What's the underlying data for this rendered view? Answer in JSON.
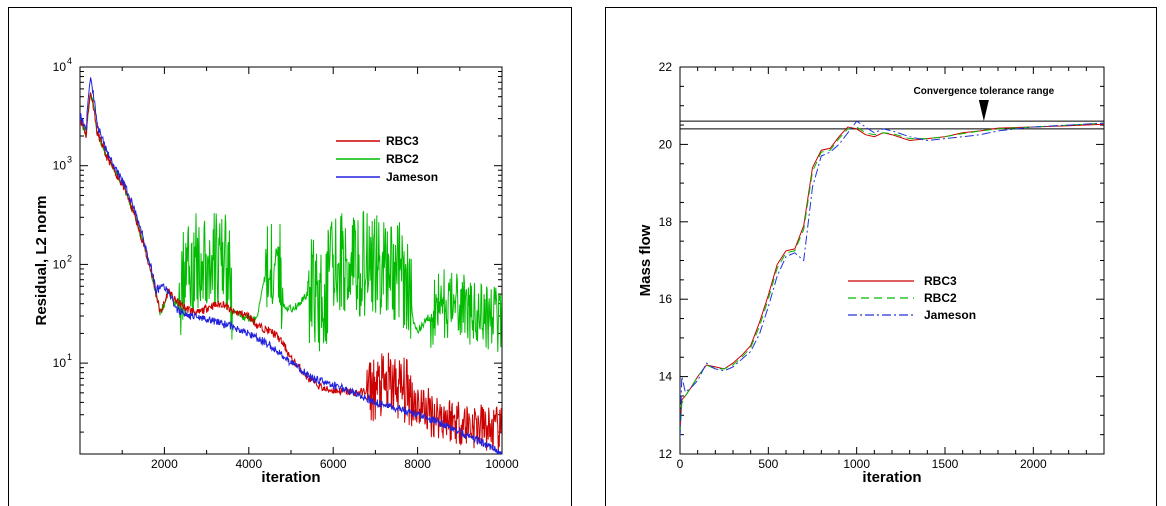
{
  "chart_data": [
    {
      "type": "line",
      "xlabel": "iteration",
      "ylabel": "Residual, L2 norm",
      "xlim": [
        0,
        10000
      ],
      "ylim": [
        1.2,
        10000
      ],
      "yscale": "log",
      "x_ticks": [
        "2000",
        "4000",
        "6000",
        "8000",
        "10000"
      ],
      "y_ticks": [
        {
          "base": "10",
          "exp": "1"
        },
        {
          "base": "10",
          "exp": "2"
        },
        {
          "base": "10",
          "exp": "3"
        },
        {
          "base": "10",
          "exp": "4"
        }
      ],
      "grid": false,
      "legend_position": "right-middle",
      "series": [
        {
          "name": "RBC3",
          "color": "#cc0000",
          "x": [
            0,
            150,
            250,
            400,
            600,
            800,
            1000,
            1200,
            1400,
            1600,
            1800,
            1900,
            2000,
            2100,
            2200,
            2500,
            2800,
            3100,
            3400,
            3600,
            3800,
            4000,
            4200,
            4400,
            4600,
            4800,
            5000,
            5400,
            5800,
            6200,
            6600,
            7000,
            7400,
            7800,
            8000,
            8400,
            8800,
            9200,
            9600,
            10000
          ],
          "y": [
            3000,
            2000,
            5500,
            2200,
            1300,
            900,
            650,
            400,
            220,
            110,
            50,
            32,
            40,
            55,
            45,
            36,
            32,
            38,
            40,
            33,
            32,
            30,
            24,
            22,
            20,
            16,
            11,
            7,
            5.4,
            5.2,
            5.0,
            5.5,
            6.0,
            5.0,
            3.8,
            3.0,
            2.7,
            2.4,
            2.2,
            2.0
          ],
          "noise": [
            [
              6800,
              7900,
              0.35
            ],
            [
              7900,
              10000,
              0.25
            ]
          ]
        },
        {
          "name": "RBC2",
          "color": "#00bb00",
          "x": [
            0,
            150,
            250,
            400,
            600,
            800,
            1000,
            1200,
            1400,
            1600,
            1800,
            1900,
            2000,
            2100,
            2200,
            2350,
            2500,
            3000,
            3500,
            3600,
            3800,
            4000,
            4200,
            4500,
            4700,
            4800,
            5000,
            5200,
            5500,
            5800,
            6000,
            6500,
            7000,
            7500,
            7800,
            7900,
            8000,
            8300,
            8600,
            9000,
            9500,
            10000
          ],
          "y": [
            3000,
            2000,
            5500,
            2200,
            1300,
            900,
            650,
            400,
            220,
            110,
            50,
            32,
            40,
            55,
            45,
            36,
            100,
            110,
            100,
            35,
            30,
            28,
            28,
            100,
            110,
            40,
            35,
            40,
            55,
            40,
            100,
            105,
            100,
            95,
            60,
            25,
            21,
            30,
            40,
            38,
            30,
            28
          ],
          "noise": [
            [
              2350,
              3600,
              0.5
            ],
            [
              4400,
              4800,
              0.5
            ],
            [
              5400,
              7850,
              0.55
            ],
            [
              8300,
              10000,
              0.35
            ]
          ]
        },
        {
          "name": "Jameson",
          "color": "#2222dd",
          "x": [
            0,
            150,
            250,
            400,
            600,
            800,
            1000,
            1200,
            1400,
            1600,
            1800,
            2000,
            2100,
            2300,
            2600,
            3000,
            3400,
            4000,
            4500,
            5000,
            5500,
            6000,
            7000,
            8000,
            9000,
            10000
          ],
          "y": [
            3200,
            2300,
            7500,
            2600,
            1500,
            1000,
            700,
            450,
            250,
            120,
            55,
            60,
            50,
            35,
            30,
            28,
            25,
            20,
            15,
            10,
            7,
            6,
            4,
            3,
            2,
            1.2
          ],
          "noise": []
        }
      ]
    },
    {
      "type": "line",
      "xlabel": "iteration",
      "ylabel": "Mass flow",
      "xlim": [
        0,
        2400
      ],
      "ylim": [
        12,
        22
      ],
      "x_ticks": [
        "0",
        "500",
        "1000",
        "1500",
        "2000"
      ],
      "y_ticks": [
        "12",
        "14",
        "16",
        "18",
        "20",
        "22"
      ],
      "grid": false,
      "legend_position": "center",
      "annotation": {
        "text": "Convergence tolerance range",
        "x": 1720,
        "y": 20.6
      },
      "reference_lines": [
        20.6,
        20.4
      ],
      "series": [
        {
          "name": "RBC3",
          "color": "#cc0000",
          "dash": "",
          "x": [
            0,
            10,
            30,
            60,
            100,
            150,
            200,
            250,
            300,
            350,
            400,
            450,
            500,
            550,
            600,
            650,
            700,
            750,
            800,
            850,
            900,
            950,
            1000,
            1050,
            1100,
            1150,
            1200,
            1300,
            1400,
            1500,
            1600,
            1700,
            1800,
            2000,
            2200,
            2400
          ],
          "y": [
            12.6,
            13.4,
            13.5,
            13.7,
            14.0,
            14.3,
            14.25,
            14.2,
            14.35,
            14.55,
            14.8,
            15.4,
            16.1,
            16.9,
            17.25,
            17.3,
            17.9,
            19.4,
            19.85,
            19.9,
            20.2,
            20.45,
            20.4,
            20.25,
            20.2,
            20.3,
            20.25,
            20.1,
            20.15,
            20.2,
            20.3,
            20.35,
            20.42,
            20.45,
            20.48,
            20.52
          ]
        },
        {
          "name": "RBC2",
          "color": "#00bb00",
          "dash": "8 5",
          "x": [
            0,
            10,
            30,
            60,
            100,
            150,
            200,
            250,
            300,
            350,
            400,
            450,
            500,
            550,
            600,
            650,
            700,
            750,
            800,
            850,
            900,
            950,
            1000,
            1050,
            1100,
            1150,
            1200,
            1300,
            1400,
            1500,
            1600,
            1700,
            1800,
            2000,
            2200,
            2400
          ],
          "y": [
            12.5,
            13.3,
            13.5,
            13.7,
            14.0,
            14.3,
            14.2,
            14.2,
            14.3,
            14.5,
            14.75,
            15.3,
            16.0,
            16.8,
            17.2,
            17.25,
            17.8,
            19.3,
            19.8,
            19.85,
            20.15,
            20.4,
            20.45,
            20.3,
            20.25,
            20.3,
            20.28,
            20.15,
            20.15,
            20.2,
            20.28,
            20.35,
            20.4,
            20.45,
            20.5,
            20.55
          ]
        },
        {
          "name": "Jameson",
          "color": "#2233dd",
          "dash": "9 3 2 3",
          "x": [
            0,
            10,
            30,
            60,
            100,
            150,
            200,
            250,
            300,
            350,
            400,
            450,
            500,
            550,
            600,
            650,
            700,
            750,
            800,
            850,
            900,
            950,
            1000,
            1050,
            1100,
            1150,
            1200,
            1300,
            1400,
            1500,
            1600,
            1700,
            1800,
            2000,
            2200,
            2400
          ],
          "y": [
            12.4,
            14.0,
            13.6,
            13.7,
            13.9,
            14.35,
            14.2,
            14.15,
            14.25,
            14.45,
            14.65,
            15.1,
            15.8,
            16.6,
            17.1,
            17.2,
            17.0,
            18.9,
            19.7,
            19.8,
            20.0,
            20.3,
            20.6,
            20.45,
            20.3,
            20.4,
            20.35,
            20.2,
            20.1,
            20.15,
            20.2,
            20.25,
            20.35,
            20.45,
            20.5,
            20.55
          ]
        }
      ]
    }
  ]
}
